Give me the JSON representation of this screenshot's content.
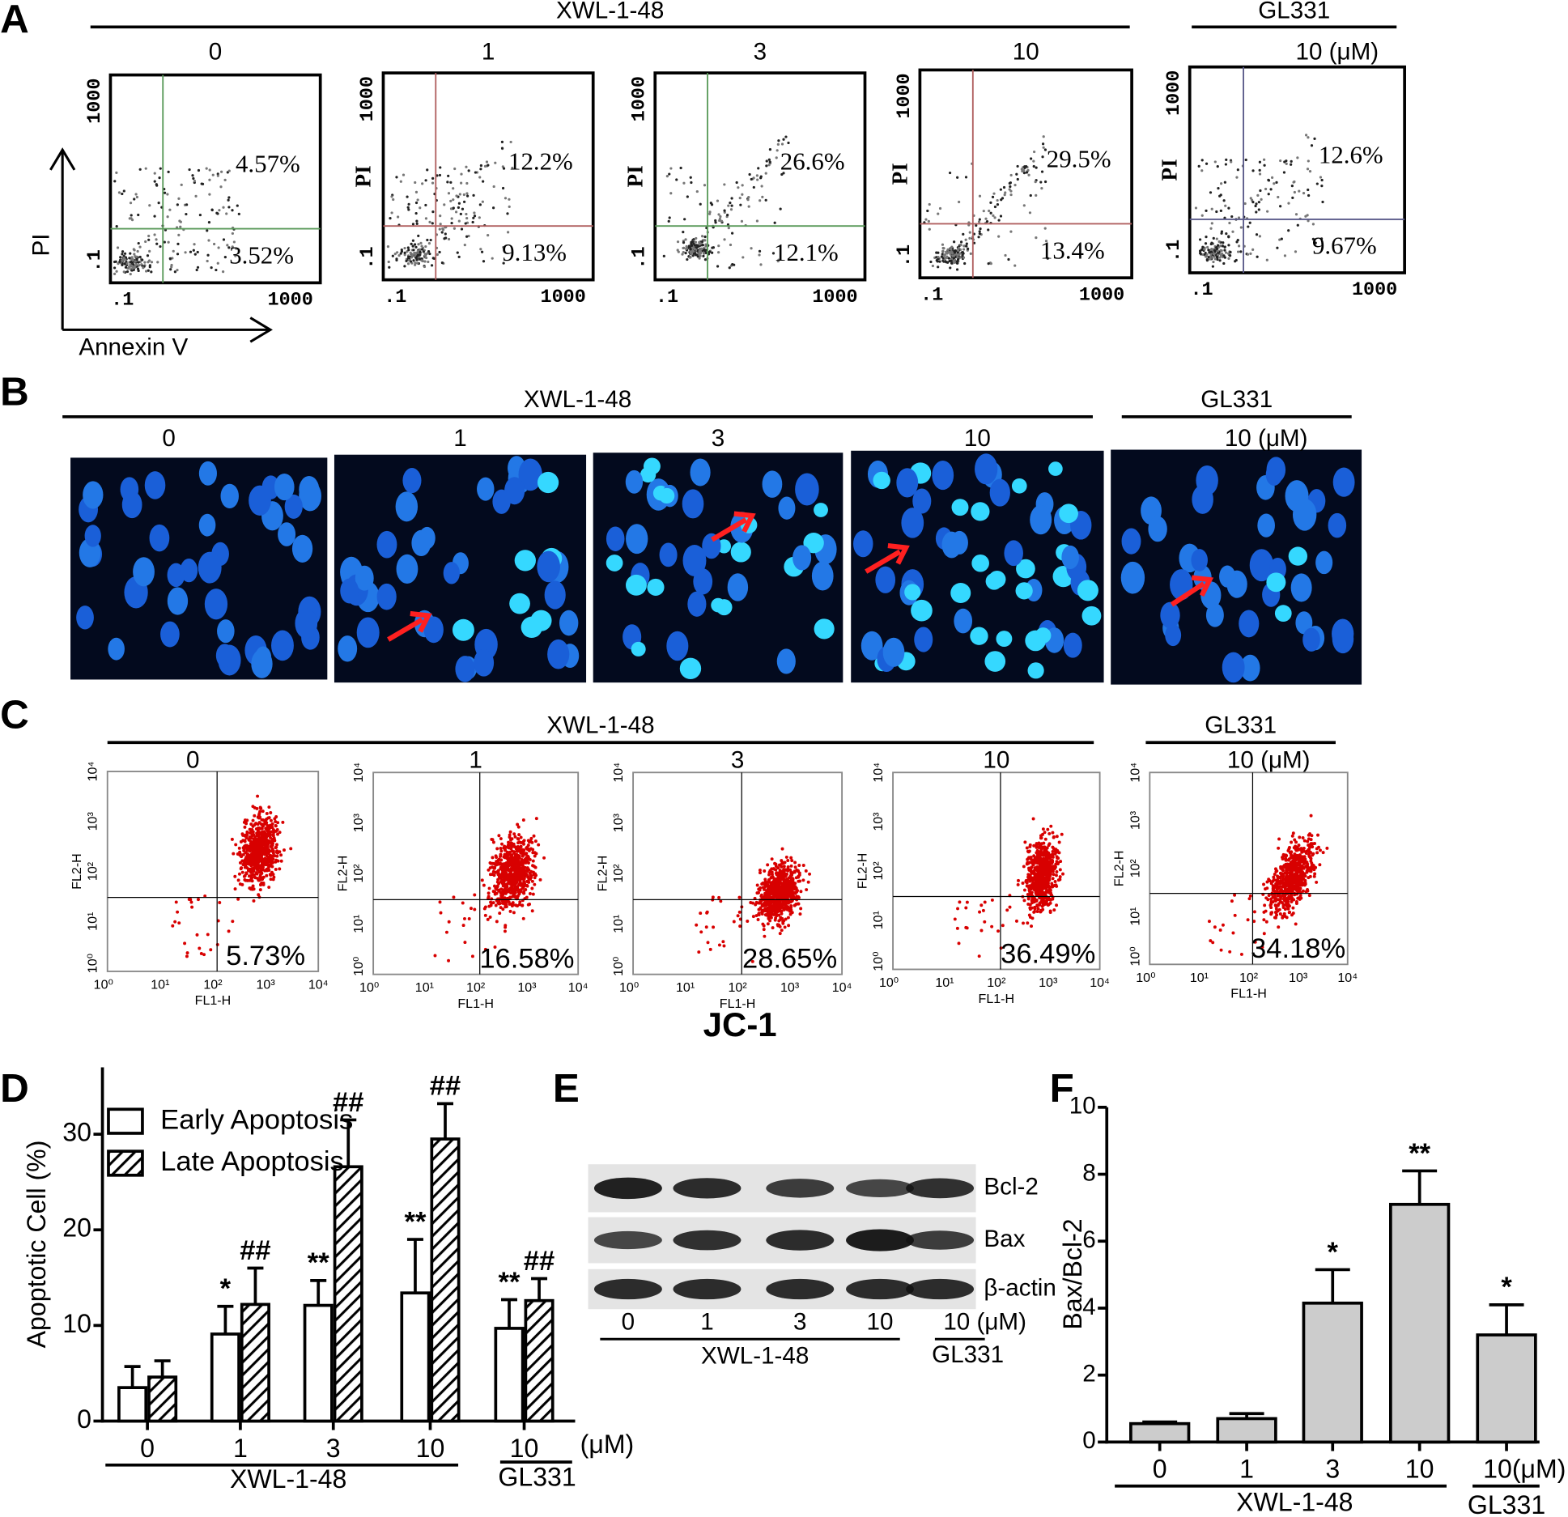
{
  "panel_labels": [
    "A",
    "B",
    "C",
    "D",
    "E",
    "F"
  ],
  "flow": {
    "header": [
      "XWL-1-48",
      "GL331"
    ],
    "doses": [
      "0",
      "1",
      "3",
      "10",
      "10 (μM)"
    ],
    "upper": [
      "4.57%",
      "12.2%",
      "26.6%",
      "29.5%",
      "12.6%"
    ],
    "lower": [
      "3.52%",
      "9.13%",
      "12.1%",
      "13.4%",
      "9.67%"
    ],
    "x_label": "Annexin V",
    "y_label": "PI",
    "ticks": [
      ".1",
      "1000"
    ]
  },
  "hoechst": {
    "header": [
      "XWL-1-48",
      "GL331"
    ],
    "doses": [
      "0",
      "1",
      "3",
      "10",
      "10 (μM)"
    ]
  },
  "jc1": {
    "header": [
      "XWL-1-48",
      "GL331"
    ],
    "doses": [
      "0",
      "1",
      "3",
      "10",
      "10 (μM)"
    ],
    "percents": [
      "5.73%",
      "16.58%",
      "28.65%",
      "36.49%",
      "34.18%"
    ],
    "x_label": "FL1-H",
    "y_label": "FL2-H",
    "ticks": [
      "10⁰",
      "10¹",
      "10²",
      "10³",
      "10⁴"
    ],
    "caption": "JC-1"
  },
  "western": {
    "proteins": [
      "Bcl-2",
      "Bax",
      "β-actin"
    ],
    "lanes": [
      "0",
      "1",
      "3",
      "10",
      "10 (μM)"
    ],
    "groups": [
      "XWL-1-48",
      "GL331"
    ]
  },
  "chart_data": [
    {
      "type": "bar",
      "ylabel": "Apoptotic Cell (%)",
      "categories": [
        "0",
        "1",
        "3",
        "10",
        "10"
      ],
      "unit": "(μM)",
      "groups": [
        "XWL-1-48",
        "GL331"
      ],
      "ylim": [
        0,
        37
      ],
      "yticks": [
        0,
        10,
        20,
        30
      ],
      "series": [
        {
          "name": "Early Apoptosis",
          "color": "#ffffff",
          "pattern": "none",
          "values": [
            3.5,
            9.1,
            12.1,
            13.4,
            9.7
          ],
          "errors": [
            2.2,
            2.9,
            2.6,
            5.6,
            3.0
          ],
          "annotations": [
            null,
            "*",
            "**",
            "**",
            "**"
          ]
        },
        {
          "name": "Late Apoptosis",
          "color": "#ffffff",
          "pattern": "hatch",
          "values": [
            4.6,
            12.2,
            26.6,
            29.5,
            12.6
          ],
          "errors": [
            1.7,
            3.8,
            4.9,
            3.7,
            2.3
          ],
          "annotations": [
            null,
            "##",
            "##",
            "##",
            "##"
          ]
        }
      ]
    },
    {
      "type": "bar",
      "ylabel": "Bax/Bcl-2",
      "categories": [
        "0",
        "1",
        "3",
        "10",
        "10(μM)"
      ],
      "groups": [
        "XWL-1-48",
        "GL331"
      ],
      "ylim": [
        0,
        10
      ],
      "yticks": [
        0,
        2,
        4,
        6,
        8,
        10
      ],
      "series": [
        {
          "name": "Bax/Bcl-2",
          "color": "#cccccc",
          "pattern": "none",
          "values": [
            0.55,
            0.7,
            4.15,
            7.1,
            3.2
          ],
          "errors": [
            0.05,
            0.15,
            1.0,
            1.0,
            0.9
          ],
          "annotations": [
            null,
            null,
            "*",
            "**",
            "*"
          ]
        }
      ]
    }
  ]
}
